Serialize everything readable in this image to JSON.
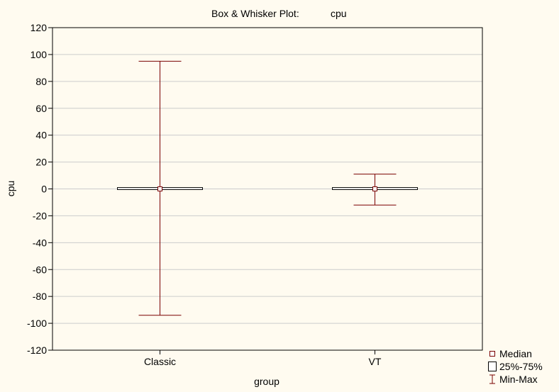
{
  "chart_data": {
    "type": "boxplot",
    "title_left": "Box & Whisker Plot:",
    "title_right": "cpu",
    "xlabel": "group",
    "ylabel": "cpu",
    "ylim": [
      -120,
      120
    ],
    "yticks": [
      -120,
      -100,
      -80,
      -60,
      -40,
      -20,
      0,
      20,
      40,
      60,
      80,
      100,
      120
    ],
    "grid": true,
    "categories": [
      "Classic",
      "VT"
    ],
    "boxes": [
      {
        "category": "Classic",
        "min": -94,
        "q1": -0.5,
        "median": 0,
        "q3": 1,
        "max": 95
      },
      {
        "category": "VT",
        "min": -12,
        "q1": -0.5,
        "median": 0,
        "q3": 1,
        "max": 11
      }
    ],
    "legend": [
      "Median",
      "25%-75%",
      "Min-Max"
    ],
    "legend_position": "bottom-right",
    "colors": {
      "whisker": "#7a0000",
      "box": "#000000",
      "grid": "#cccccc",
      "background": "#fffbf0"
    }
  }
}
